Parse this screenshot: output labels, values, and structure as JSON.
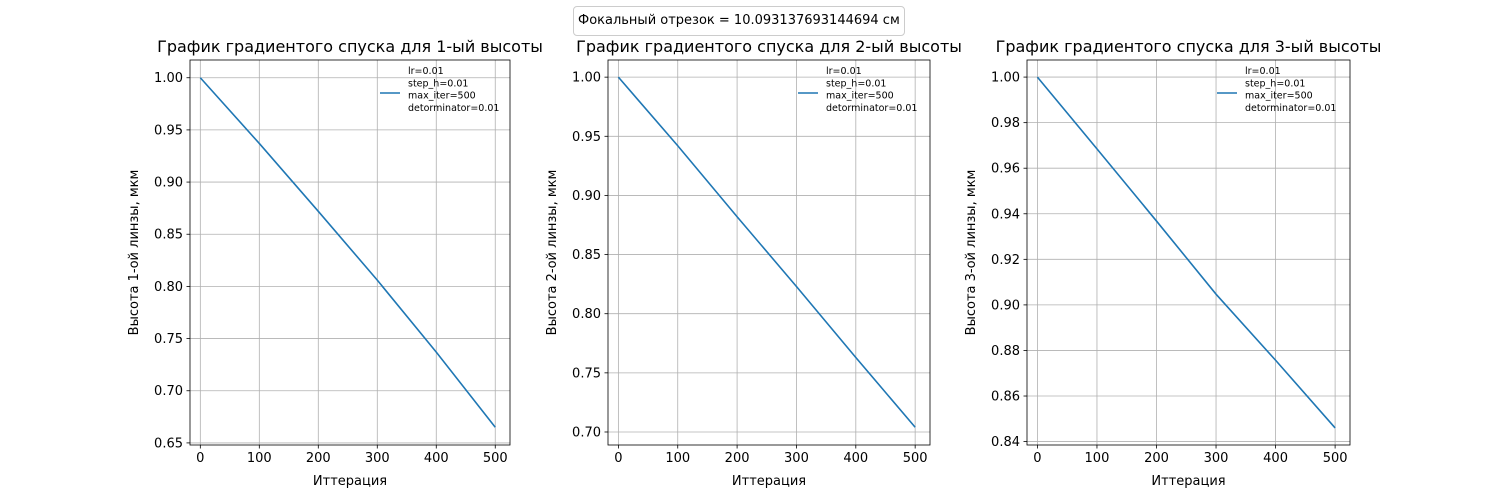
{
  "figure": {
    "suptitle": "Фокальный отрезок = 10.093137693144694 см"
  },
  "chart_data": [
    {
      "type": "line",
      "title": "График градиентого спуска для 1-ый высоты",
      "xlabel": "Иттерация",
      "ylabel": "Высота 1-ой линзы, мкм",
      "xlim": [
        -17.5,
        525
      ],
      "ylim": [
        0.648,
        1.017
      ],
      "xticks": [
        0,
        100,
        200,
        300,
        400,
        500
      ],
      "xtick_labels": [
        "0",
        "100",
        "200",
        "300",
        "400",
        "500"
      ],
      "yticks": [
        0.65,
        0.7,
        0.75,
        0.8,
        0.85,
        0.9,
        0.95,
        1.0
      ],
      "ytick_labels": [
        "0.65",
        "0.70",
        "0.75",
        "0.80",
        "0.85",
        "0.90",
        "0.95",
        "1.00"
      ],
      "grid": true,
      "legend_position": "top-right",
      "color": "#1f77b4",
      "series": [
        {
          "name": "lr=0.01\nstep_h=0.01\nmax_iter=500\ndetorminator=0.01",
          "name_lines": [
            "lr=0.01",
            "step_h=0.01",
            "max_iter=500",
            "detorminator=0.01"
          ],
          "x": [
            0,
            100,
            200,
            300,
            400,
            500
          ],
          "y": [
            1.0,
            0.937,
            0.872,
            0.806,
            0.737,
            0.665
          ]
        }
      ]
    },
    {
      "type": "line",
      "title": "График градиентого спуска для 2-ый высоты",
      "xlabel": "Иттерация",
      "ylabel": "Высота 2-ой линзы, мкм",
      "xlim": [
        -17.5,
        525
      ],
      "ylim": [
        0.689,
        1.0145
      ],
      "xticks": [
        0,
        100,
        200,
        300,
        400,
        500
      ],
      "xtick_labels": [
        "0",
        "100",
        "200",
        "300",
        "400",
        "500"
      ],
      "yticks": [
        0.7,
        0.75,
        0.8,
        0.85,
        0.9,
        0.95,
        1.0
      ],
      "ytick_labels": [
        "0.70",
        "0.75",
        "0.80",
        "0.85",
        "0.90",
        "0.95",
        "1.00"
      ],
      "grid": true,
      "legend_position": "top-right",
      "color": "#1f77b4",
      "series": [
        {
          "name": "lr=0.01\nstep_h=0.01\nmax_iter=500\ndetorminator=0.01",
          "name_lines": [
            "lr=0.01",
            "step_h=0.01",
            "max_iter=500",
            "detorminator=0.01"
          ],
          "x": [
            0,
            100,
            200,
            300,
            400,
            500
          ],
          "y": [
            1.0,
            0.942,
            0.882,
            0.823,
            0.763,
            0.704
          ]
        }
      ]
    },
    {
      "type": "line",
      "title": "График градиентого спуска для 3-ый высоты",
      "xlabel": "Иттерация",
      "ylabel": "Высота 3-ой линзы, мкм",
      "xlim": [
        -17.5,
        525
      ],
      "ylim": [
        0.8385,
        1.0075
      ],
      "xticks": [
        0,
        100,
        200,
        300,
        400,
        500
      ],
      "xtick_labels": [
        "0",
        "100",
        "200",
        "300",
        "400",
        "500"
      ],
      "yticks": [
        0.84,
        0.86,
        0.88,
        0.9,
        0.92,
        0.94,
        0.96,
        0.98,
        1.0
      ],
      "ytick_labels": [
        "0.84",
        "0.86",
        "0.88",
        "0.90",
        "0.92",
        "0.94",
        "0.96",
        "0.98",
        "1.00"
      ],
      "grid": true,
      "legend_position": "top-right",
      "color": "#1f77b4",
      "series": [
        {
          "name": "lr=0.01\nstep_h=0.01\nmax_iter=500\ndetorminator=0.01",
          "name_lines": [
            "lr=0.01",
            "step_h=0.01",
            "max_iter=500",
            "detorminator=0.01"
          ],
          "x": [
            0,
            100,
            200,
            300,
            400,
            500
          ],
          "y": [
            1.0,
            0.9685,
            0.9368,
            0.9047,
            0.8757,
            0.846
          ]
        }
      ]
    }
  ]
}
